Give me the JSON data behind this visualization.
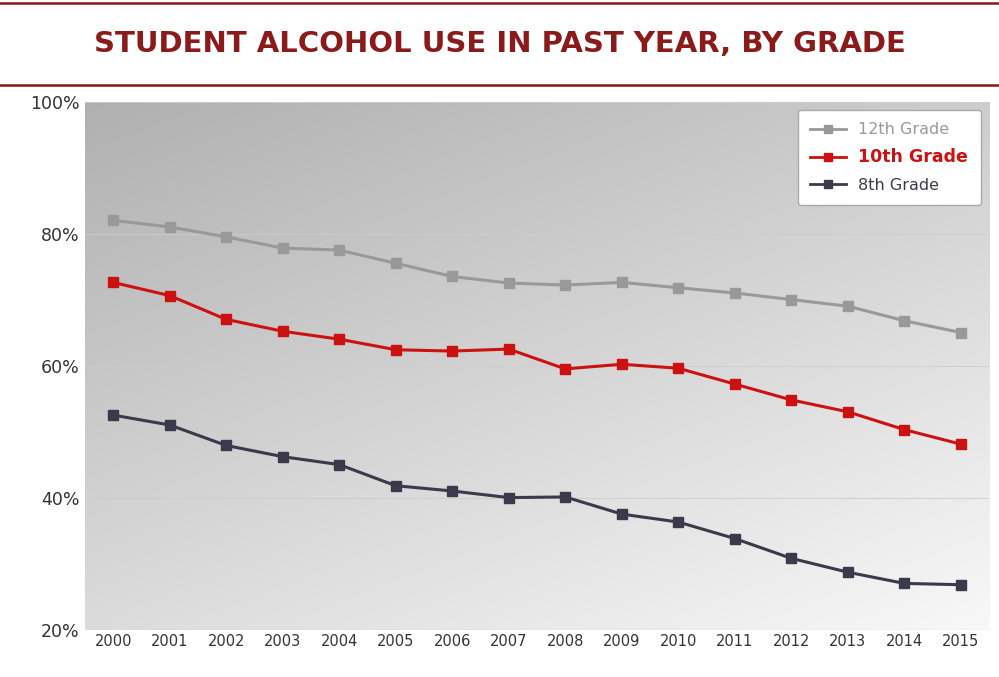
{
  "title": "STUDENT ALCOHOL USE IN PAST YEAR, BY GRADE",
  "title_color": "#8B1A1A",
  "title_fontsize": 21,
  "years": [
    2000,
    2001,
    2002,
    2003,
    2004,
    2005,
    2006,
    2007,
    2008,
    2009,
    2010,
    2011,
    2012,
    2013,
    2014,
    2015
  ],
  "grade12": [
    0.82,
    0.81,
    0.795,
    0.778,
    0.775,
    0.755,
    0.735,
    0.725,
    0.722,
    0.726,
    0.718,
    0.71,
    0.7,
    0.69,
    0.668,
    0.65
  ],
  "grade10": [
    0.726,
    0.706,
    0.67,
    0.652,
    0.64,
    0.624,
    0.622,
    0.625,
    0.595,
    0.602,
    0.596,
    0.572,
    0.548,
    0.53,
    0.503,
    0.481
  ],
  "grade8": [
    0.525,
    0.51,
    0.479,
    0.462,
    0.45,
    0.418,
    0.41,
    0.4,
    0.401,
    0.375,
    0.363,
    0.338,
    0.308,
    0.287,
    0.27,
    0.268
  ],
  "grade12_color": "#999999",
  "grade10_color": "#CC1111",
  "grade8_color": "#3a3a4a",
  "line_width": 2.2,
  "marker": "s",
  "marker_size": 7,
  "ylim": [
    0.2,
    1.0
  ],
  "yticks": [
    0.2,
    0.4,
    0.6,
    0.8,
    1.0
  ],
  "legend_labels": [
    "12th Grade",
    "10th Grade",
    "8th Grade"
  ],
  "legend_label_colors": [
    "#999999",
    "#CC1111",
    "#3a3a4a"
  ]
}
